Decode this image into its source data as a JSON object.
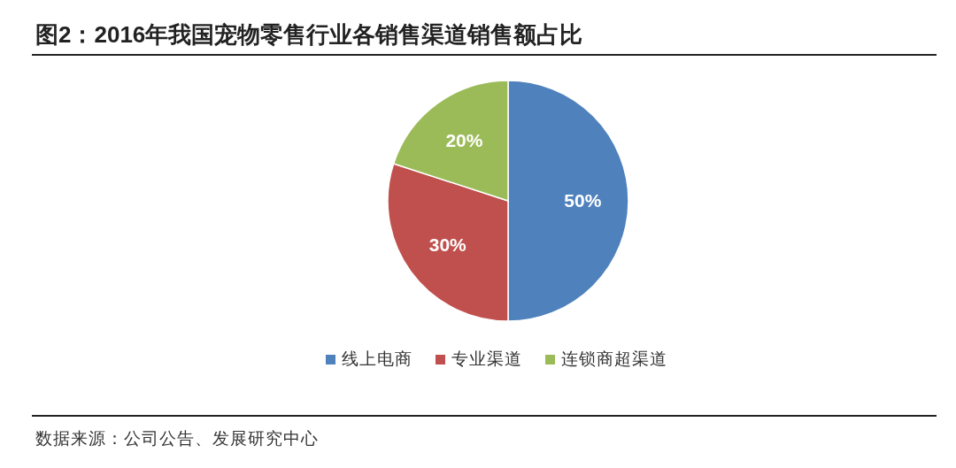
{
  "chart_data": {
    "type": "pie",
    "title": "图2：2016年我国宠物零售行业各销售渠道销售额占比",
    "categories": [
      "线上电商",
      "专业渠道",
      "连锁商超渠道"
    ],
    "values": [
      50,
      30,
      20
    ],
    "colors": [
      "#4f81bd",
      "#c0504d",
      "#9bbb59"
    ],
    "value_labels": [
      "50%",
      "30%",
      "20%"
    ],
    "legend": "bottom",
    "annotations": [
      "数据来源：公司公告、发展研究中心"
    ]
  }
}
